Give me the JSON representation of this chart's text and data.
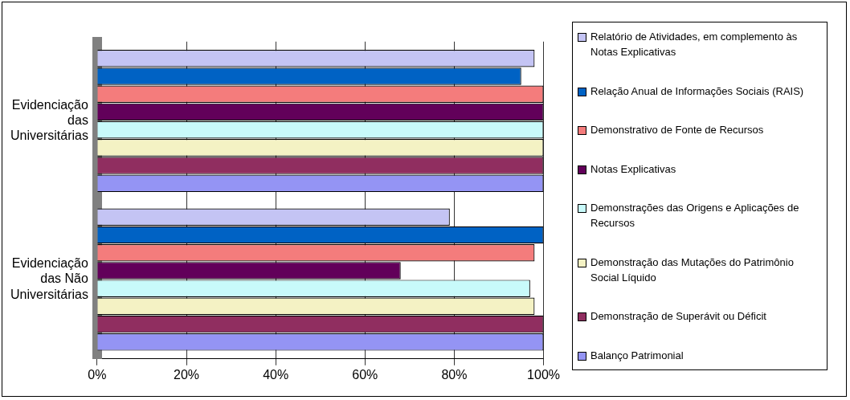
{
  "chart_data": {
    "type": "bar",
    "orientation": "horizontal",
    "categories": [
      "Evidenciação das Universitárias",
      "Evidenciação das Não Universitárias"
    ],
    "series": [
      {
        "name": "Relatório de Atividades, em complemento às Notas Explicativas",
        "color": "#c4c4f4",
        "values": [
          98,
          79
        ]
      },
      {
        "name": "Relação Anual de Informações Sociais (RAIS)",
        "color": "#0062c4",
        "values": [
          95,
          100
        ]
      },
      {
        "name": "Demonstrativo de Fonte de Recursos",
        "color": "#f47c7c",
        "values": [
          100,
          98
        ]
      },
      {
        "name": "Notas Explicativas",
        "color": "#62005a",
        "values": [
          100,
          68
        ]
      },
      {
        "name": "Demonstrações das Origens e Aplicações de Recursos",
        "color": "#c8fafa",
        "values": [
          100,
          97
        ]
      },
      {
        "name": "Demonstração das Mutações do Patrimônio Social Líquido",
        "color": "#f4f2c4",
        "values": [
          100,
          98
        ]
      },
      {
        "name": "Demonstração de Superávit ou Déficit",
        "color": "#902e60",
        "values": [
          100,
          100
        ]
      },
      {
        "name": "Balanço Patrimonial",
        "color": "#9494f4",
        "values": [
          100,
          100
        ]
      }
    ],
    "xlim": [
      0,
      100
    ],
    "xticks": [
      {
        "value": 0,
        "label": "0%"
      },
      {
        "value": 20,
        "label": "20%"
      },
      {
        "value": 40,
        "label": "40%"
      },
      {
        "value": 60,
        "label": "60%"
      },
      {
        "value": 80,
        "label": "80%"
      },
      {
        "value": 100,
        "label": "100%"
      }
    ],
    "grid": "x",
    "legend": "right"
  }
}
